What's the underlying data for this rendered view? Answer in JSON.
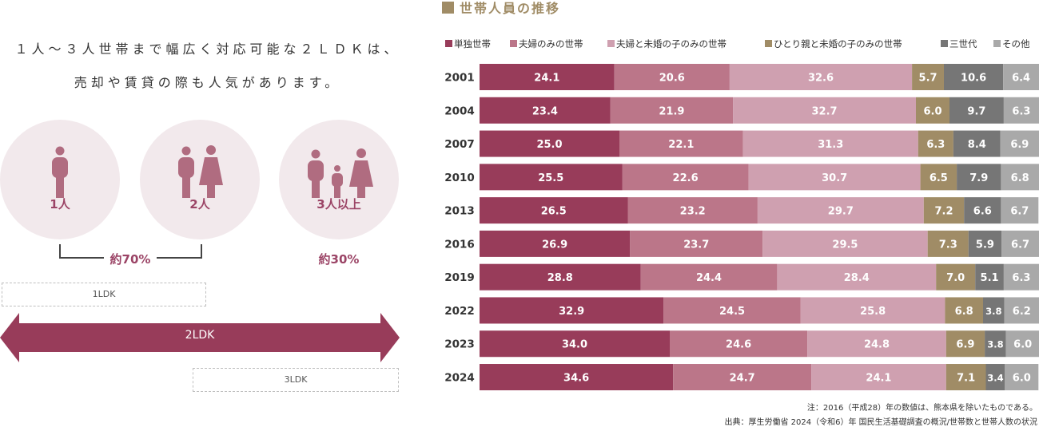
{
  "intro": {
    "line1": "１人〜３人世帯まで幅広く対応可能な２ＬＤＫは、",
    "line2": "売却や賃貸の際も人気があります。"
  },
  "household_sizes": [
    {
      "label": "1人",
      "icon": "single-person-icon"
    },
    {
      "label": "2人",
      "icon": "couple-icon"
    },
    {
      "label": "3人以上",
      "icon": "family-icon"
    }
  ],
  "percentages": {
    "small": "約70%",
    "large": "約30%"
  },
  "layouts": {
    "one": "1LDK",
    "two": "2LDK",
    "three": "3LDK"
  },
  "colors": {
    "accent": "#983c5a",
    "circle_bg": "#f2e9ec",
    "title_square": "#a08c66"
  },
  "chart_data": {
    "type": "bar",
    "orientation": "horizontal",
    "stacked": true,
    "title": "世帯人員の推移",
    "categories": [
      "2001",
      "2004",
      "2007",
      "2010",
      "2013",
      "2016",
      "2019",
      "2022",
      "2023",
      "2024"
    ],
    "xlim": [
      0,
      100
    ],
    "legend_position": "top",
    "series": [
      {
        "name": "単独世帯",
        "color": "#983c5a",
        "values": [
          24.1,
          23.4,
          25.0,
          25.5,
          26.5,
          26.9,
          28.8,
          32.9,
          34.0,
          34.6
        ]
      },
      {
        "name": "夫婦のみの世帯",
        "color": "#bb7689",
        "values": [
          20.6,
          21.9,
          22.1,
          22.6,
          23.2,
          23.7,
          24.4,
          24.5,
          24.6,
          24.7
        ]
      },
      {
        "name": "夫婦と未婚の子のみの世帯",
        "color": "#cfa0b0",
        "values": [
          32.6,
          32.7,
          31.3,
          30.7,
          29.7,
          29.5,
          28.4,
          25.8,
          24.8,
          24.1
        ]
      },
      {
        "name": "ひとり親と未婚の子のみの世帯",
        "color": "#a08c66",
        "values": [
          5.7,
          6.0,
          6.3,
          6.5,
          7.2,
          7.3,
          7.0,
          6.8,
          6.9,
          7.1
        ]
      },
      {
        "name": "三世代",
        "color": "#767676",
        "values": [
          10.6,
          9.7,
          8.4,
          7.9,
          6.6,
          5.9,
          5.1,
          3.8,
          3.8,
          3.4
        ]
      },
      {
        "name": "その他",
        "color": "#a9a9a9",
        "values": [
          6.4,
          6.3,
          6.9,
          6.8,
          6.7,
          6.7,
          6.3,
          6.2,
          6.0,
          6.0
        ]
      }
    ],
    "notes": [
      "注：2016（平成28）年の数値は、熊本県を除いたものである。",
      "出典：厚生労働省 2024（令和6）年 国民生活基礎調査の概況/世帯数と世帯人数の状況"
    ]
  }
}
